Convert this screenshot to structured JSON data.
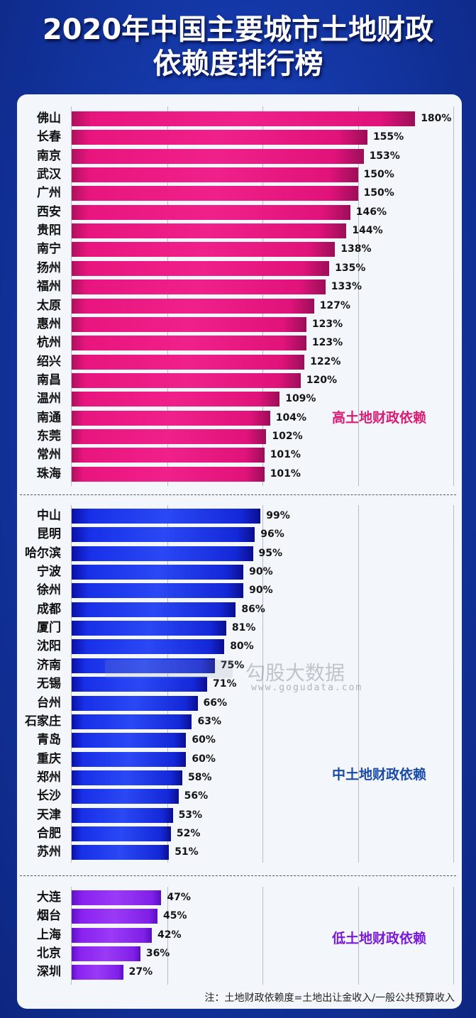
{
  "header": {
    "title_line1": "2020年中国主要城市土地财政",
    "title_line2": "依赖度排行榜"
  },
  "colors": {
    "background": "#1438a8",
    "high": "#e8157e",
    "mid": "#1a30e6",
    "low": "#8a22f0",
    "high_label": "#d81b74",
    "mid_label": "#1a4aa8",
    "low_label": "#7a1ad8"
  },
  "categories": {
    "high": "高土地财政依赖",
    "mid": "中土地财政依赖",
    "low": "低土地财政依赖"
  },
  "watermark": {
    "name": "勾股大数据",
    "url": "www.gogudata.com"
  },
  "note": "注：土地财政依赖度=土地出让金收入/一般公共预算收入",
  "chart_data": {
    "type": "bar",
    "orientation": "horizontal",
    "title": "2020年中国主要城市土地财政依赖度排行榜",
    "xlabel": "",
    "ylabel": "",
    "xlim": [
      0,
      200
    ],
    "grid": true,
    "unit": "%",
    "categories": [
      "佛山",
      "长春",
      "南京",
      "武汉",
      "广州",
      "西安",
      "贵阳",
      "南宁",
      "扬州",
      "福州",
      "太原",
      "惠州",
      "杭州",
      "绍兴",
      "南昌",
      "温州",
      "南通",
      "东莞",
      "常州",
      "珠海",
      "中山",
      "昆明",
      "哈尔滨",
      "宁波",
      "徐州",
      "成都",
      "厦门",
      "沈阳",
      "济南",
      "无锡",
      "台州",
      "石家庄",
      "青岛",
      "重庆",
      "郑州",
      "长沙",
      "天津",
      "合肥",
      "苏州",
      "大连",
      "烟台",
      "上海",
      "北京",
      "深圳"
    ],
    "values": [
      180,
      155,
      153,
      150,
      150,
      146,
      144,
      138,
      135,
      133,
      127,
      123,
      123,
      122,
      120,
      109,
      104,
      102,
      101,
      101,
      99,
      96,
      95,
      90,
      90,
      86,
      81,
      80,
      75,
      71,
      66,
      63,
      60,
      60,
      58,
      56,
      53,
      52,
      51,
      47,
      45,
      42,
      36,
      27
    ],
    "groups": [
      {
        "name": "高土地财政依赖",
        "range": [
          0,
          19
        ]
      },
      {
        "name": "中土地财政依赖",
        "range": [
          20,
          38
        ]
      },
      {
        "name": "低土地财政依赖",
        "range": [
          39,
          43
        ]
      }
    ],
    "annotation": "注：土地财政依赖度=土地出让金收入/一般公共预算收入"
  },
  "rows": [
    {
      "city": "佛山",
      "value": 180,
      "label": "180%",
      "group": "high"
    },
    {
      "city": "长春",
      "value": 155,
      "label": "155%",
      "group": "high"
    },
    {
      "city": "南京",
      "value": 153,
      "label": "153%",
      "group": "high"
    },
    {
      "city": "武汉",
      "value": 150,
      "label": "150%",
      "group": "high"
    },
    {
      "city": "广州",
      "value": 150,
      "label": "150%",
      "group": "high"
    },
    {
      "city": "西安",
      "value": 146,
      "label": "146%",
      "group": "high"
    },
    {
      "city": "贵阳",
      "value": 144,
      "label": "144%",
      "group": "high"
    },
    {
      "city": "南宁",
      "value": 138,
      "label": "138%",
      "group": "high"
    },
    {
      "city": "扬州",
      "value": 135,
      "label": "135%",
      "group": "high"
    },
    {
      "city": "福州",
      "value": 133,
      "label": "133%",
      "group": "high"
    },
    {
      "city": "太原",
      "value": 127,
      "label": "127%",
      "group": "high"
    },
    {
      "city": "惠州",
      "value": 123,
      "label": "123%",
      "group": "high"
    },
    {
      "city": "杭州",
      "value": 123,
      "label": "123%",
      "group": "high"
    },
    {
      "city": "绍兴",
      "value": 122,
      "label": "122%",
      "group": "high"
    },
    {
      "city": "南昌",
      "value": 120,
      "label": "120%",
      "group": "high"
    },
    {
      "city": "温州",
      "value": 109,
      "label": "109%",
      "group": "high"
    },
    {
      "city": "南通",
      "value": 104,
      "label": "104%",
      "group": "high"
    },
    {
      "city": "东莞",
      "value": 102,
      "label": "102%",
      "group": "high"
    },
    {
      "city": "常州",
      "value": 101,
      "label": "101%",
      "group": "high"
    },
    {
      "city": "珠海",
      "value": 101,
      "label": "101%",
      "group": "high"
    },
    {
      "city": "中山",
      "value": 99,
      "label": "99%",
      "group": "mid"
    },
    {
      "city": "昆明",
      "value": 96,
      "label": "96%",
      "group": "mid"
    },
    {
      "city": "哈尔滨",
      "value": 95,
      "label": "95%",
      "group": "mid"
    },
    {
      "city": "宁波",
      "value": 90,
      "label": "90%",
      "group": "mid"
    },
    {
      "city": "徐州",
      "value": 90,
      "label": "90%",
      "group": "mid"
    },
    {
      "city": "成都",
      "value": 86,
      "label": "86%",
      "group": "mid"
    },
    {
      "city": "厦门",
      "value": 81,
      "label": "81%",
      "group": "mid"
    },
    {
      "city": "沈阳",
      "value": 80,
      "label": "80%",
      "group": "mid"
    },
    {
      "city": "济南",
      "value": 75,
      "label": "75%",
      "group": "mid"
    },
    {
      "city": "无锡",
      "value": 71,
      "label": "71%",
      "group": "mid"
    },
    {
      "city": "台州",
      "value": 66,
      "label": "66%",
      "group": "mid"
    },
    {
      "city": "石家庄",
      "value": 63,
      "label": "63%",
      "group": "mid"
    },
    {
      "city": "青岛",
      "value": 60,
      "label": "60%",
      "group": "mid"
    },
    {
      "city": "重庆",
      "value": 60,
      "label": "60%",
      "group": "mid"
    },
    {
      "city": "郑州",
      "value": 58,
      "label": "58%",
      "group": "mid"
    },
    {
      "city": "长沙",
      "value": 56,
      "label": "56%",
      "group": "mid"
    },
    {
      "city": "天津",
      "value": 53,
      "label": "53%",
      "group": "mid"
    },
    {
      "city": "合肥",
      "value": 52,
      "label": "52%",
      "group": "mid"
    },
    {
      "city": "苏州",
      "value": 51,
      "label": "51%",
      "group": "mid"
    },
    {
      "city": "大连",
      "value": 47,
      "label": "47%",
      "group": "low"
    },
    {
      "city": "烟台",
      "value": 45,
      "label": "45%",
      "group": "low"
    },
    {
      "city": "上海",
      "value": 42,
      "label": "42%",
      "group": "low"
    },
    {
      "city": "北京",
      "value": 36,
      "label": "36%",
      "group": "low"
    },
    {
      "city": "深圳",
      "value": 27,
      "label": "27%",
      "group": "low"
    }
  ]
}
